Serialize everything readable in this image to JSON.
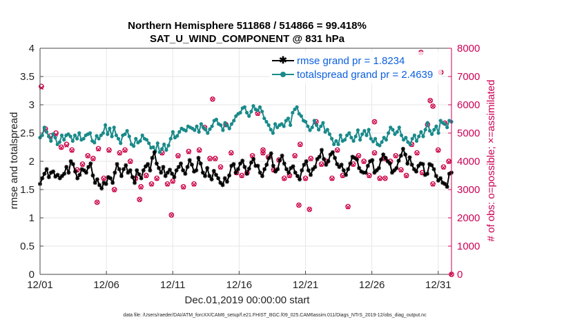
{
  "chart_data": {
    "type": "line",
    "title_line1": "Northern Hemisphere 511868 / 514866 = 99.418%",
    "title_line2": "SAT_U_WIND_COMPONENT @ 831 hPa",
    "xlabel": "Dec.01,2019 00:00:00 start",
    "ylabel": "rmse and totalspread",
    "ylabel_right": "# of obs: o=possible; ×=assimilated",
    "footnote": "data file: /Users/raeder/DAI/ATM_forcXX/CAM6_setup/f.e21.FHIST_BGC.f09_025.CAM6assim.011/Diags_NTrS_2019-12/obs_diag_output.nc",
    "xlim": [
      0,
      31
    ],
    "ylim": [
      0,
      4
    ],
    "ylim_right": [
      0,
      8000
    ],
    "x_ticks": [
      0,
      5,
      10,
      15,
      20,
      25,
      30
    ],
    "x_tick_labels": [
      "12/01",
      "12/06",
      "12/11",
      "12/16",
      "12/21",
      "12/26",
      "12/31"
    ],
    "y_ticks": [
      0,
      0.5,
      1,
      1.5,
      2,
      2.5,
      3,
      3.5,
      4
    ],
    "y_tick_labels": [
      "0",
      "0.5",
      "1",
      "1.5",
      "2",
      "2.5",
      "3",
      "3.5",
      "4"
    ],
    "y_ticks_right": [
      0,
      1000,
      2000,
      3000,
      4000,
      5000,
      6000,
      7000,
      8000
    ],
    "y_tick_labels_right": [
      "0",
      "1000",
      "2000",
      "3000",
      "4000",
      "5000",
      "6000",
      "7000",
      "8000"
    ],
    "series": [
      {
        "name": "rmse grand pr = 1.8234",
        "color": "#000000",
        "marker": "asterisk",
        "values": [
          1.6,
          1.7,
          1.78,
          1.86,
          1.72,
          1.8,
          1.82,
          1.73,
          1.76,
          1.7,
          1.74,
          1.78,
          1.9,
          1.8,
          2.0,
          1.95,
          1.82,
          1.7,
          1.76,
          1.86,
          1.84,
          1.8,
          1.9,
          1.96,
          1.75,
          1.62,
          1.68,
          1.58,
          1.52,
          1.62,
          1.6,
          1.72,
          1.7,
          1.62,
          1.8,
          1.95,
          1.86,
          1.74,
          1.86,
          1.93,
          1.8,
          1.84,
          1.72,
          1.62,
          1.84,
          1.77,
          1.7,
          1.84,
          1.91,
          1.95,
          1.84,
          2.06,
          2.16,
          1.96,
          1.88,
          1.8,
          1.9,
          1.74,
          1.8,
          1.85,
          1.78,
          1.72,
          1.84,
          1.9,
          1.96,
          1.84,
          1.78,
          1.9,
          2.02,
          1.94,
          1.82,
          1.84,
          2.06,
          1.96,
          1.8,
          1.74,
          1.88,
          1.74,
          1.68,
          1.83,
          1.76,
          1.7,
          1.62,
          1.58,
          1.7,
          1.64,
          1.75,
          1.92,
          1.95,
          1.8,
          1.86,
          1.96,
          2.01,
          1.9,
          1.78,
          1.87,
          1.98,
          2.04,
          1.92,
          1.92,
          1.8,
          1.74,
          1.86,
          1.94,
          2.06,
          2.14,
          1.92,
          1.82,
          1.86,
          2.02,
          2.1,
          1.96,
          1.86,
          1.8,
          1.88,
          1.91,
          1.8,
          1.74,
          1.68,
          1.84,
          1.94,
          2.0,
          1.84,
          1.76,
          1.86,
          1.9,
          2.04,
          2.08,
          2.2,
          2.04,
          1.94,
          2.0,
          2.12,
          2.16,
          2.06,
          1.95,
          1.9,
          1.94,
          1.84,
          1.76,
          1.86,
          1.96,
          2.08,
          2.06,
          2.03,
          1.88,
          1.82,
          1.8,
          1.8,
          1.92,
          2.0,
          2.02,
          1.8,
          1.84,
          1.88,
          2.03,
          2.12,
          2.06,
          2.0,
          1.96,
          1.8,
          1.84,
          1.88,
          2.01,
          2.1,
          2.22,
          2.12,
          1.96,
          2.07,
          1.94,
          1.86,
          1.82,
          1.92,
          1.96,
          1.95,
          1.76,
          1.78,
          1.95,
          1.93,
          1.86,
          1.74,
          1.66,
          1.7,
          1.62,
          1.6,
          1.55,
          1.78,
          1.8
        ]
      },
      {
        "name": "totalspread grand pr = 2.4639",
        "color": "#1a8a8a",
        "marker": "circle",
        "values": [
          2.42,
          2.46,
          2.6,
          2.52,
          2.44,
          2.36,
          2.48,
          2.42,
          2.3,
          2.34,
          2.46,
          2.38,
          2.46,
          2.48,
          2.44,
          2.36,
          2.46,
          2.4,
          2.5,
          2.38,
          2.4,
          2.46,
          2.48,
          2.5,
          2.36,
          2.33,
          2.45,
          2.4,
          2.46,
          2.5,
          2.64,
          2.48,
          2.58,
          2.44,
          2.6,
          2.46,
          2.4,
          2.32,
          2.46,
          2.48,
          2.54,
          2.44,
          2.3,
          2.27,
          2.4,
          2.33,
          2.36,
          2.46,
          2.4,
          2.38,
          2.32,
          2.24,
          2.25,
          2.18,
          2.32,
          2.16,
          2.22,
          2.3,
          2.2,
          2.28,
          2.4,
          2.52,
          2.42,
          2.45,
          2.52,
          2.58,
          2.56,
          2.54,
          2.62,
          2.6,
          2.58,
          2.55,
          2.62,
          2.52,
          2.66,
          2.6,
          2.56,
          2.5,
          2.57,
          2.62,
          2.72,
          2.74,
          2.66,
          2.64,
          2.55,
          2.68,
          2.63,
          2.58,
          2.66,
          2.72,
          2.8,
          2.84,
          2.86,
          2.94,
          2.96,
          2.86,
          2.8,
          2.88,
          2.98,
          2.92,
          2.9,
          2.96,
          2.88,
          2.76,
          2.7,
          2.64,
          2.56,
          2.5,
          2.66,
          2.6,
          2.64,
          2.66,
          2.62,
          2.72,
          2.76,
          2.64,
          2.86,
          2.92,
          2.96,
          2.84,
          2.8,
          2.72,
          2.7,
          2.62,
          2.55,
          2.6,
          2.72,
          2.64,
          2.56,
          2.62,
          2.68,
          2.52,
          2.56,
          2.48,
          2.4,
          2.3,
          2.36,
          2.3,
          2.46,
          2.36,
          2.38,
          2.46,
          2.5,
          2.42,
          2.36,
          2.44,
          2.55,
          2.38,
          2.48,
          2.54,
          2.46,
          2.56,
          2.4,
          2.35,
          2.4,
          2.3,
          2.28,
          2.34,
          2.42,
          2.38,
          2.5,
          2.6,
          2.56,
          2.48,
          2.52,
          2.6,
          2.46,
          2.38,
          2.42,
          2.34,
          2.3,
          2.4,
          2.46,
          2.36,
          2.44,
          2.52,
          2.44,
          2.56,
          2.68,
          2.54,
          2.48,
          2.56,
          2.62,
          2.5,
          2.72,
          2.68,
          2.66,
          2.6,
          2.72,
          2.7
        ]
      }
    ],
    "obs_possible": {
      "name": "# of obs possible",
      "color": "#cc0044",
      "marker": "circle",
      "x": [
        0.1,
        0.4,
        0.8,
        1.2,
        1.6,
        2.0,
        2.4,
        2.8,
        3.2,
        3.6,
        4.0,
        4.4,
        4.8,
        5.2,
        5.6,
        6.0,
        6.4,
        6.8,
        7.2,
        7.6,
        8.0,
        8.4,
        8.8,
        9.2,
        9.6,
        10.0,
        10.4,
        10.8,
        11.2,
        11.6,
        12.0,
        12.4,
        12.8,
        13.2,
        13.6,
        14.0,
        14.4,
        14.8,
        15.2,
        15.6,
        16.0,
        16.4,
        16.8,
        17.2,
        17.6,
        18.0,
        18.4,
        18.8,
        19.2,
        19.6,
        20.0,
        20.4,
        20.8,
        21.2,
        21.6,
        22.0,
        22.4,
        22.8,
        23.2,
        23.6,
        24.0,
        24.4,
        24.8,
        25.2,
        25.6,
        26.0,
        26.4,
        26.8,
        27.2,
        27.6,
        28.0,
        28.4,
        28.8,
        29.2,
        29.6,
        30.0,
        30.4,
        30.8
      ],
      "values": [
        6650,
        5150,
        4900,
        5000,
        4500,
        4600,
        4400,
        3700,
        3900,
        4200,
        4100,
        4450,
        3400,
        4400,
        3000,
        4300,
        4400,
        4000,
        3400,
        3100,
        3500,
        3200,
        3400,
        4300,
        3200,
        3300,
        4200,
        3100,
        4350,
        3200,
        4400,
        5200,
        4100,
        4100,
        3800,
        5300,
        4300,
        3600,
        3500,
        3600,
        4200,
        5700,
        4300,
        4150,
        3700,
        4050,
        3400,
        3500,
        4200,
        4600,
        3400,
        4100,
        5400,
        3900,
        4000,
        3400,
        4400,
        3500,
        2400,
        3900,
        4200,
        4000,
        3500,
        4300,
        3400,
        4100,
        4000,
        4200,
        3700,
        3500,
        4600,
        4300,
        3600,
        5300,
        3200,
        4400,
        3800,
        4000
      ]
    },
    "obs_assimilated": {
      "name": "# of obs assimilated",
      "color": "#cc0044",
      "marker": "x",
      "x": [
        0.1,
        0.4,
        0.8,
        1.2,
        1.6,
        2.0,
        2.4,
        2.8,
        3.2,
        3.6,
        4.0,
        4.4,
        4.8,
        5.2,
        5.6,
        6.0,
        6.4,
        6.8,
        7.2,
        7.6,
        8.0,
        8.4,
        8.8,
        9.2,
        9.6,
        10.0,
        10.4,
        10.8,
        11.2,
        11.6,
        12.0,
        12.4,
        12.8,
        13.2,
        13.6,
        14.0,
        14.4,
        14.8,
        15.2,
        15.6,
        16.0,
        16.4,
        16.8,
        17.2,
        17.6,
        18.0,
        18.4,
        18.8,
        19.2,
        19.6,
        20.0,
        20.4,
        20.8,
        21.2,
        21.6,
        22.0,
        22.4,
        22.8,
        23.2,
        23.6,
        24.0,
        24.4,
        24.8,
        25.2,
        25.6,
        26.0,
        26.4,
        26.8,
        27.2,
        27.6,
        28.0,
        28.4,
        28.8,
        29.2,
        29.6,
        30.0,
        30.4,
        30.8
      ],
      "values": [
        6600,
        5100,
        4850,
        4950,
        4480,
        4560,
        4380,
        3680,
        3880,
        4180,
        4080,
        4420,
        3380,
        4380,
        2980,
        4280,
        4380,
        3980,
        3380,
        3080,
        3480,
        3180,
        3380,
        4280,
        3180,
        3280,
        4180,
        3080,
        4320,
        3180,
        4380,
        5180,
        4080,
        4080,
        3780,
        5280,
        4280,
        3580,
        3480,
        3580,
        4180,
        5680,
        4280,
        4130,
        3680,
        4030,
        3380,
        3480,
        4180,
        4580,
        3380,
        4080,
        5380,
        3880,
        3980,
        3380,
        4380,
        3480,
        2380,
        3880,
        4180,
        3980,
        3480,
        4280,
        3380,
        4080,
        3980,
        4180,
        3680,
        3480,
        4580,
        4280,
        3580,
        5280,
        3180,
        4380,
        3780,
        3980
      ]
    },
    "extra_obs_points": [
      {
        "x": 28.7,
        "value": 7850
      },
      {
        "x": 29.4,
        "value": 6150
      },
      {
        "x": 29.6,
        "value": 5950
      },
      {
        "x": 30.5,
        "value": 5350
      },
      {
        "x": 30.2,
        "value": 7150
      },
      {
        "x": 31.0,
        "value": 0
      },
      {
        "x": 26.0,
        "value": 3400
      },
      {
        "x": 25.2,
        "value": 5400
      },
      {
        "x": 9.9,
        "value": 2100
      },
      {
        "x": 7.5,
        "value": 2650
      },
      {
        "x": 4.3,
        "value": 2550
      },
      {
        "x": 13.0,
        "value": 6200
      },
      {
        "x": 16.8,
        "value": 4400
      },
      {
        "x": 19.5,
        "value": 2450
      },
      {
        "x": 20.3,
        "value": 2300
      }
    ],
    "legend": {
      "placement": "top-right",
      "entries": [
        "rmse grand pr = 1.8234",
        "totalspread grand pr = 2.4639"
      ]
    },
    "grid": true
  }
}
